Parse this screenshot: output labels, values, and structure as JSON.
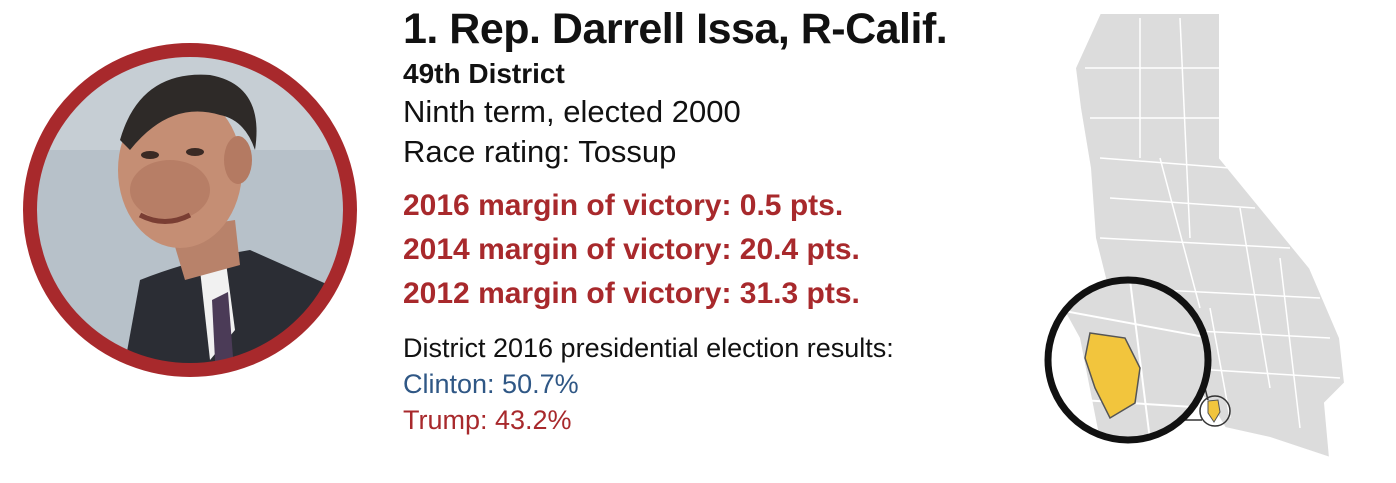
{
  "rep": {
    "name": "1. Rep. Darrell Issa, R-Calif.",
    "district": "49th District",
    "term": "Ninth term, elected 2000",
    "rating": "Race rating: Tossup"
  },
  "margins": [
    "2016 margin of victory: 0.5 pts.",
    "2014 margin of victory: 20.4 pts.",
    "2012 margin of victory: 31.3 pts."
  ],
  "results": {
    "title": "District 2016 presidential election results:",
    "clinton": "Clinton: 50.7%",
    "trump": "Trump: 43.2%"
  },
  "colors": {
    "accent_red": "#a8292c",
    "clinton_blue": "#2f5785",
    "map_gray": "#dcdcdc",
    "district_yellow": "#f2c53d"
  },
  "icons": {
    "portrait": "person-portrait-icon",
    "map": "california-map-icon"
  }
}
